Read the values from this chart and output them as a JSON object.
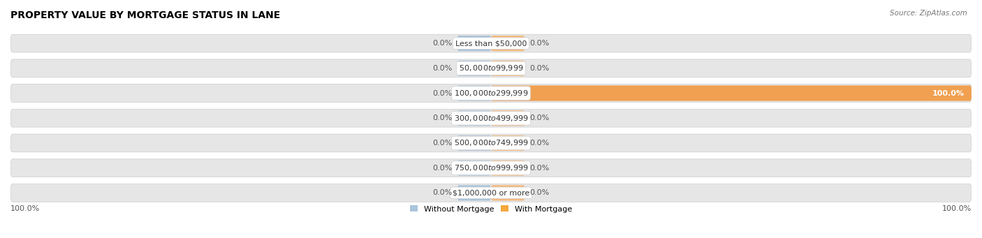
{
  "title": "PROPERTY VALUE BY MORTGAGE STATUS IN LANE",
  "source": "Source: ZipAtlas.com",
  "categories": [
    "Less than $50,000",
    "$50,000 to $99,999",
    "$100,000 to $299,999",
    "$300,000 to $499,999",
    "$500,000 to $749,999",
    "$750,000 to $999,999",
    "$1,000,000 or more"
  ],
  "without_mortgage": [
    0.0,
    0.0,
    0.0,
    0.0,
    0.0,
    0.0,
    0.0
  ],
  "with_mortgage": [
    0.0,
    0.0,
    100.0,
    0.0,
    0.0,
    0.0,
    0.0
  ],
  "color_without": "#aac4dc",
  "color_with": "#f5b97a",
  "color_with_full": "#f0a050",
  "color_without_legend": "#aac4dc",
  "color_with_legend": "#f5a83c",
  "bg_row_color": "#e6e6e6",
  "bg_row_color_alt": "#eeeeee",
  "xlim_left": -100,
  "xlim_right": 100,
  "stub_size": 7,
  "title_fontsize": 10,
  "label_fontsize": 8,
  "tick_fontsize": 8,
  "legend_fontsize": 8,
  "axis_label_left": "100.0%",
  "axis_label_right": "100.0%"
}
